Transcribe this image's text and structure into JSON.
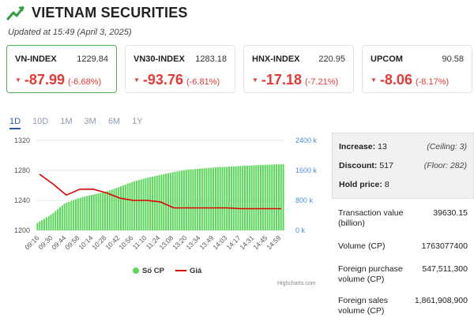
{
  "header": {
    "title": "VIETNAM SECURITIES",
    "logo_icon": "trending-up-arrow-icon",
    "updated": "Updated at 15:49 (April 3, 2025)"
  },
  "indices": [
    {
      "name": "VN-INDEX",
      "value": "1229.84",
      "change": "-87.99",
      "pct": "(-6.68%)",
      "active": true
    },
    {
      "name": "VN30-INDEX",
      "value": "1283.18",
      "change": "-93.76",
      "pct": "(-6.81%)",
      "active": false
    },
    {
      "name": "HNX-INDEX",
      "value": "220.95",
      "change": "-17.18",
      "pct": "(-7.21%)",
      "active": false
    },
    {
      "name": "UPCOM",
      "value": "90.58",
      "change": "-8.06",
      "pct": "(-8.17%)",
      "active": false
    }
  ],
  "ranges": [
    "1D",
    "10D",
    "1M",
    "3M",
    "6M",
    "1Y"
  ],
  "colors": {
    "down": "#e53935",
    "bars": "#5cd65c",
    "line": "#e00000",
    "accent": "#4caf50"
  },
  "chart_data": {
    "type": "bar+line",
    "x": [
      "09:16",
      "09:30",
      "09:44",
      "09:58",
      "10:14",
      "10:28",
      "10:42",
      "10:56",
      "11:10",
      "11:24",
      "13:08",
      "13:20",
      "13:34",
      "13:49",
      "14:03",
      "14:17",
      "14:31",
      "14:45",
      "14:59"
    ],
    "left_axis": {
      "ticks": [
        "1320",
        "1280",
        "1240",
        "1200"
      ],
      "ylim": [
        1200,
        1320
      ]
    },
    "right_axis": {
      "ticks": [
        "2400 k",
        "1600 k",
        "800 k",
        "0 k"
      ],
      "ylim": [
        0,
        2400
      ]
    },
    "series": [
      {
        "name": "Số CP",
        "type": "column",
        "axis": "right",
        "values": [
          200,
          420,
          720,
          860,
          950,
          1030,
          1160,
          1300,
          1400,
          1480,
          1560,
          1620,
          1650,
          1680,
          1700,
          1720,
          1740,
          1755,
          1765
        ]
      },
      {
        "name": "Giá",
        "type": "line",
        "axis": "left",
        "values": [
          1275,
          1262,
          1247,
          1255,
          1255,
          1250,
          1243,
          1240,
          1240,
          1238,
          1230,
          1230,
          1230,
          1230,
          1230,
          1229,
          1229,
          1229,
          1229
        ]
      }
    ],
    "legend": [
      "Số CP",
      "Giá"
    ],
    "credit": "Highcharts.com"
  },
  "breadth": {
    "increase_label": "Increase:",
    "increase": "13",
    "ceiling": "(Ceiling: 3)",
    "discount_label": "Discount:",
    "discount": "517",
    "floor": "(Floor: 282)",
    "hold_label": "Hold price:",
    "hold": "8"
  },
  "stats": [
    {
      "label": "Transaction value (billion)",
      "value": "39630.15"
    },
    {
      "label": "Volume (CP)",
      "value": "1763077400"
    },
    {
      "label": "Foreign purchase volume (CP)",
      "value": "547,511,300"
    },
    {
      "label": "Foreign sales volume (CP)",
      "value": "1,861,908,900"
    }
  ]
}
